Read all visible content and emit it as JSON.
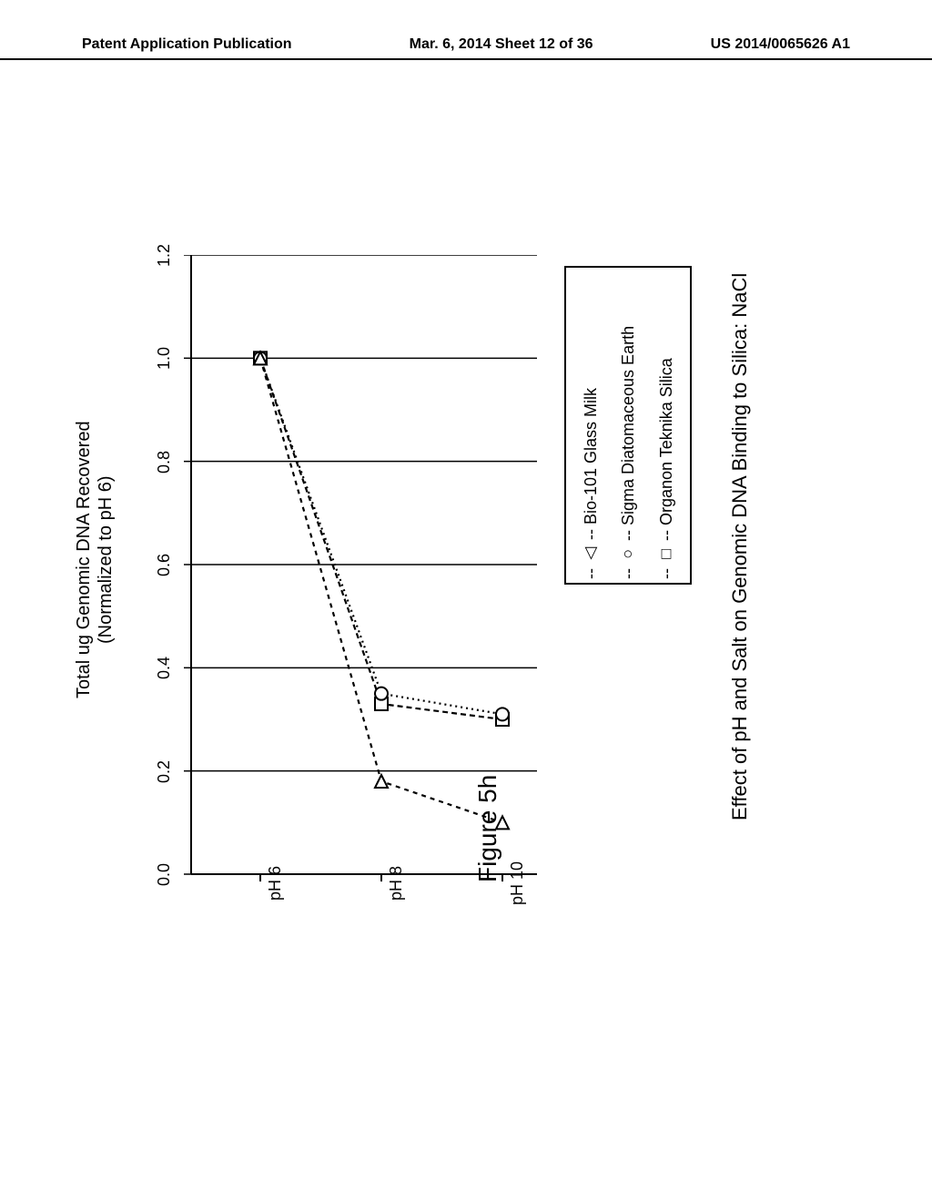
{
  "header": {
    "left": "Patent Application Publication",
    "center": "Mar. 6, 2014  Sheet 12 of 36",
    "right": "US 2014/0065626 A1"
  },
  "chart": {
    "type": "line",
    "title": "Effect of pH and Salt on Genomic DNA Binding to Silica: NaCl",
    "y_axis_label_line1": "Total ug Genomic DNA Recovered",
    "y_axis_label_line2": "(Normalized to pH 6)",
    "x_categories": [
      "pH 6",
      "pH 8",
      "pH 10"
    ],
    "x_positions": [
      0.2,
      0.55,
      0.9
    ],
    "y_ticks": [
      0.0,
      0.2,
      0.4,
      0.6,
      0.8,
      1.0,
      1.2
    ],
    "ylim": [
      0.0,
      1.2
    ],
    "series": [
      {
        "name": "Organon Teknika Silica",
        "marker": "square",
        "dash": "6,4",
        "values": [
          1.0,
          0.33,
          0.3
        ]
      },
      {
        "name": "Sigma Diatomaceous Earth",
        "marker": "circle",
        "dash": "2,4",
        "values": [
          1.0,
          0.35,
          0.31
        ]
      },
      {
        "name": "Bio-101 Glass Milk",
        "marker": "triangle",
        "dash": "5,5",
        "values": [
          1.0,
          0.18,
          0.1
        ]
      }
    ],
    "legend": [
      "-- □ --  Organon Teknika Silica",
      "-- ○ --  Sigma Diatomaceous Earth",
      "-- △ --  Bio-101 Glass Milk"
    ],
    "plot_bg": "#ffffff",
    "line_color": "#000000",
    "stroke_width": 2.2,
    "marker_size": 7
  },
  "caption": "Figure 5h"
}
